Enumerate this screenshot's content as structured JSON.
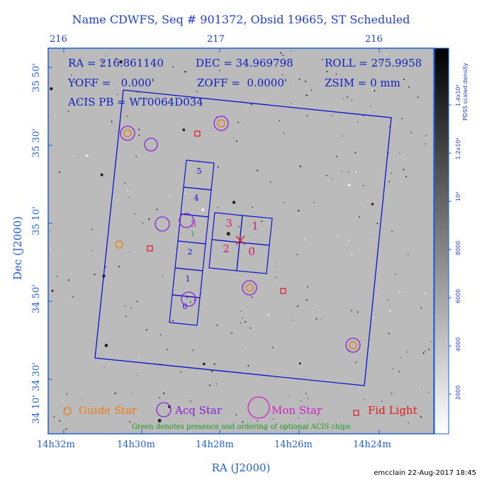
{
  "title": "Name CDWFS, Seq # 901372, Obsid 19665, ST Scheduled",
  "top_ticks": [
    "216",
    "217",
    "216"
  ],
  "bottom_ticks": [
    "14h32m",
    "14h30m",
    "14h28m",
    "14h26m",
    "14h24m"
  ],
  "dec_ticks": [
    "35 50'",
    "35 30'",
    "35 10'",
    "34 50'",
    "34 30'",
    "34 10'"
  ],
  "xlabel": "RA (J2000)",
  "ylabel": "Dec (J2000)",
  "info": {
    "ra": "RA = 216.861140",
    "dec": "DEC = 34.969798",
    "roll": "ROLL = 275.9958",
    "yoff": "YOFF =   0.000'",
    "zoff": "ZOFF =  0.0000'",
    "zsim": "ZSIM = 0 mm",
    "acis": "ACIS PB = WT0064D034"
  },
  "chip_labels": {
    "s_chips": [
      "5",
      "4",
      "3",
      "2",
      "1",
      "0"
    ],
    "s_optional": "1",
    "i_chips": [
      "3",
      "1",
      "2",
      "0"
    ]
  },
  "legend": {
    "guide": "Guide Star",
    "acq": "Acq Star",
    "mon": "Mon Star",
    "fid": "Fid Light",
    "note": "Green denotes presence and ordering of optional ACIS chips"
  },
  "colorbar": {
    "title": "1.4x10⁴",
    "subtitle": "PDSS scaled density",
    "ticks": [
      "1.2x10⁴",
      "10⁴",
      "8000",
      "6000",
      "4000",
      "2000"
    ]
  },
  "footer": "emcclain 22-Aug-2017 18:45",
  "colors": {
    "frame": "#1e5fd6",
    "guide": "#f07a10",
    "acq": "#8a20d8",
    "mon": "#d020c8",
    "fid": "#e01818",
    "fov": "#1010d0",
    "optional": "#1a9a1a"
  }
}
